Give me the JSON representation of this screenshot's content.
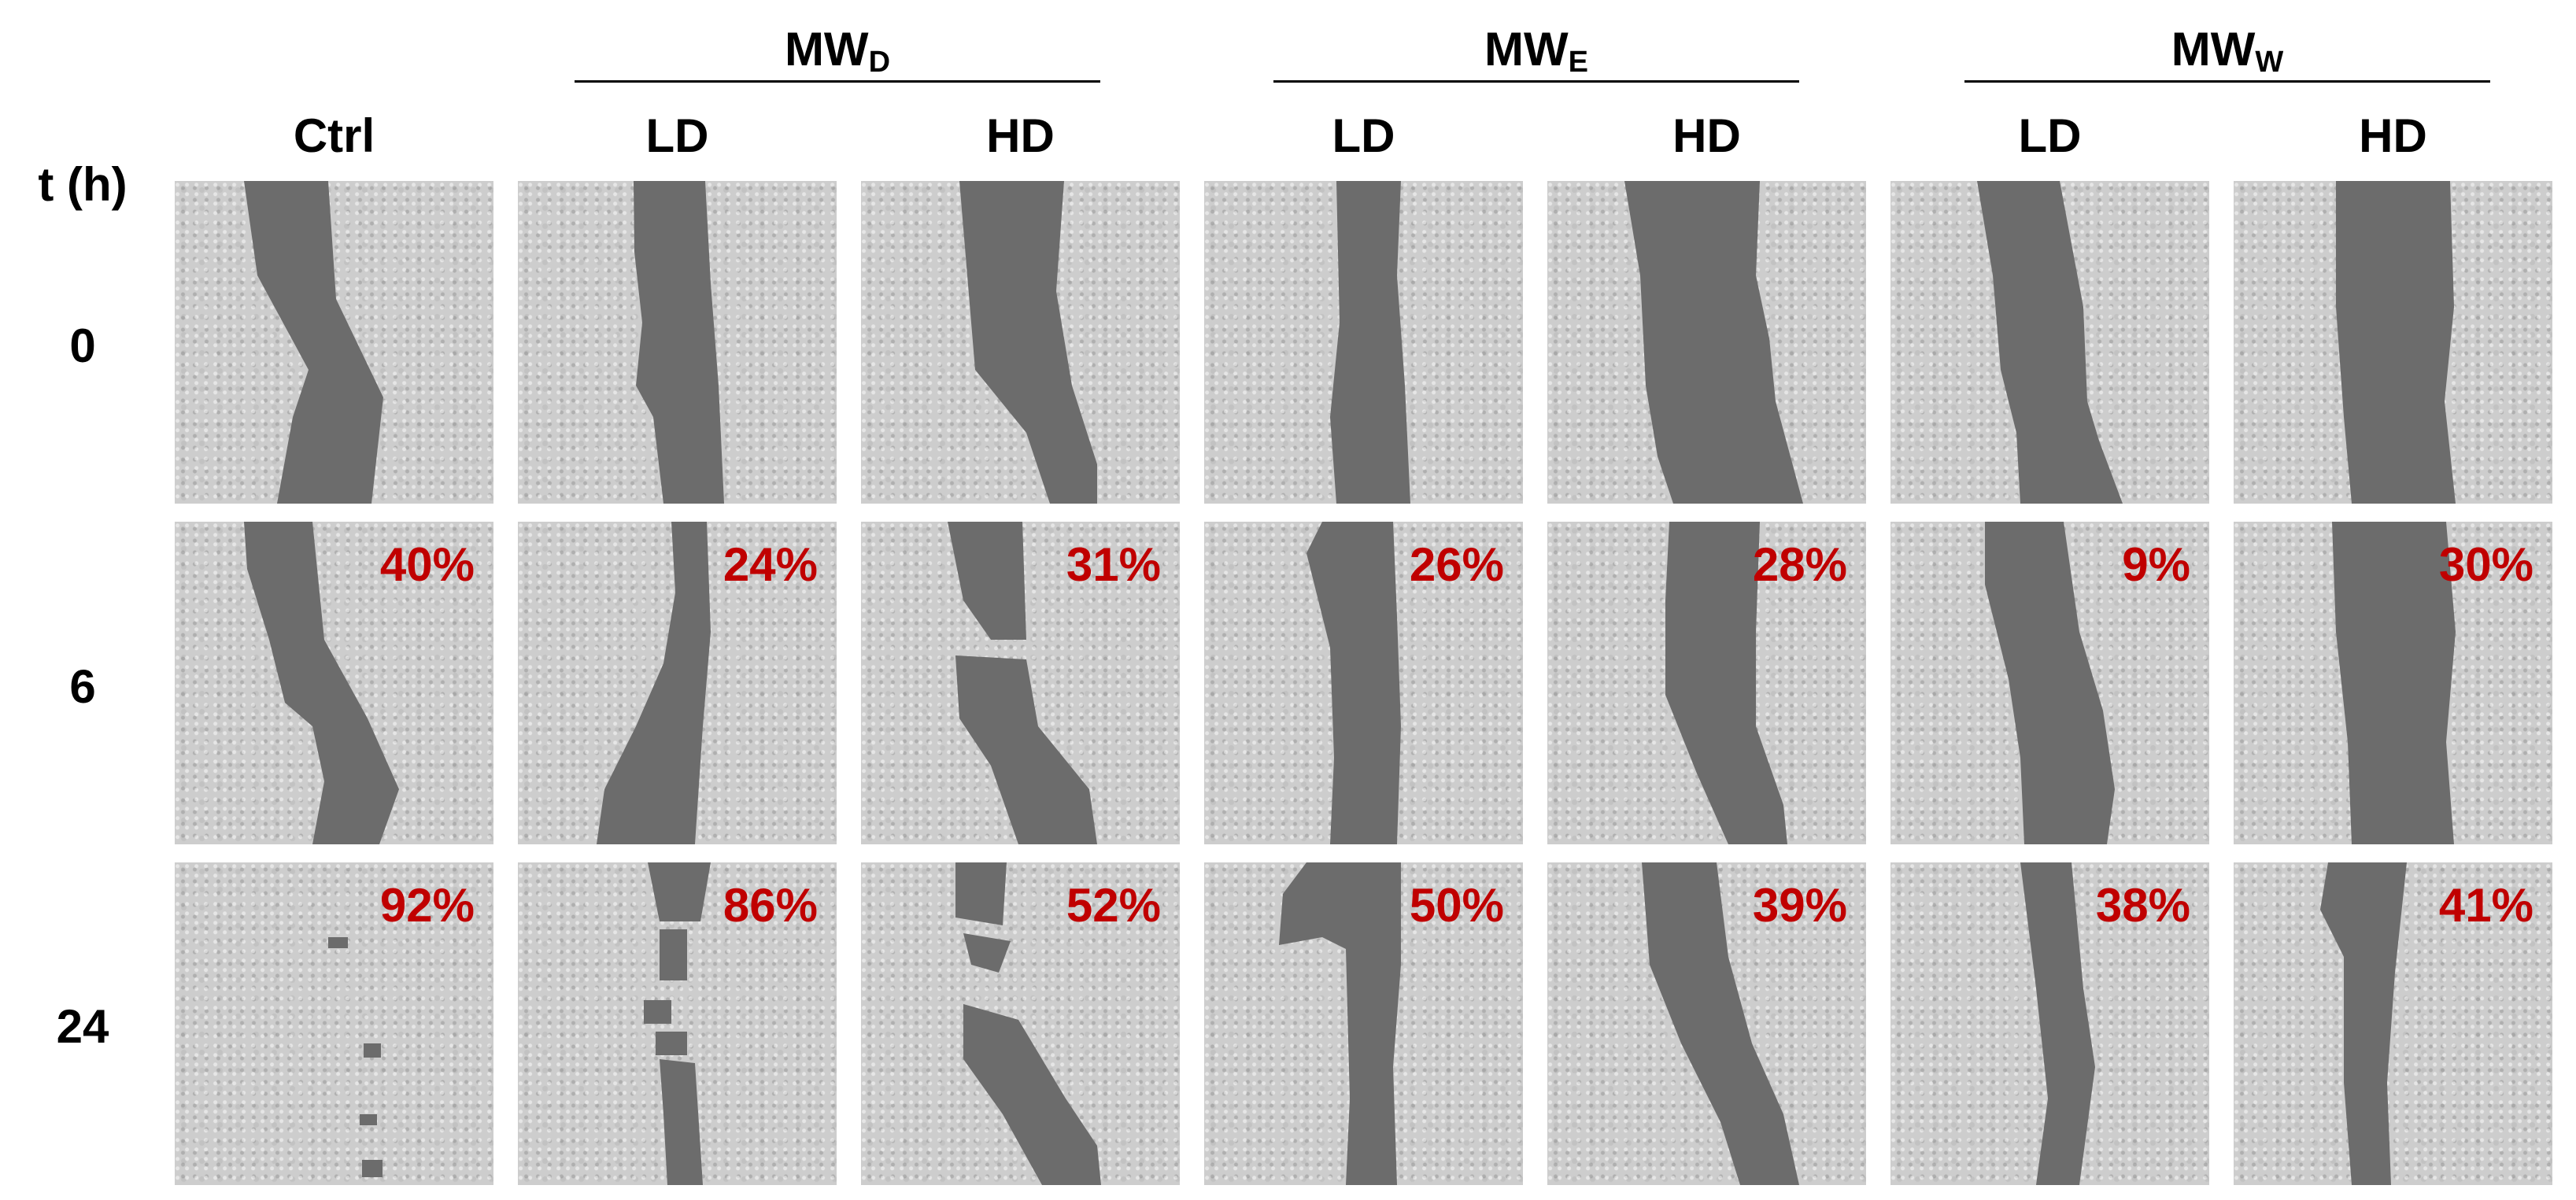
{
  "header": {
    "time_label": "t (h)",
    "groups": [
      {
        "main": "MW",
        "sub": "D"
      },
      {
        "main": "MW",
        "sub": "E"
      },
      {
        "main": "MW",
        "sub": "W"
      }
    ],
    "columns": [
      "Ctrl",
      "LD",
      "HD",
      "LD",
      "HD",
      "LD",
      "HD"
    ]
  },
  "rows": [
    {
      "time": "0",
      "percents": [
        "",
        "",
        "",
        "",
        "",
        "",
        ""
      ]
    },
    {
      "time": "6",
      "percents": [
        "40%",
        "24%",
        "31%",
        "26%",
        "28%",
        "9%",
        "30%"
      ]
    },
    {
      "time": "24",
      "percents": [
        "92%",
        "86%",
        "52%",
        "50%",
        "39%",
        "38%",
        "41%"
      ]
    }
  ],
  "colors": {
    "gap": "#6c6c6c",
    "cells": "#cdcdcd",
    "percent": "#c00000"
  }
}
